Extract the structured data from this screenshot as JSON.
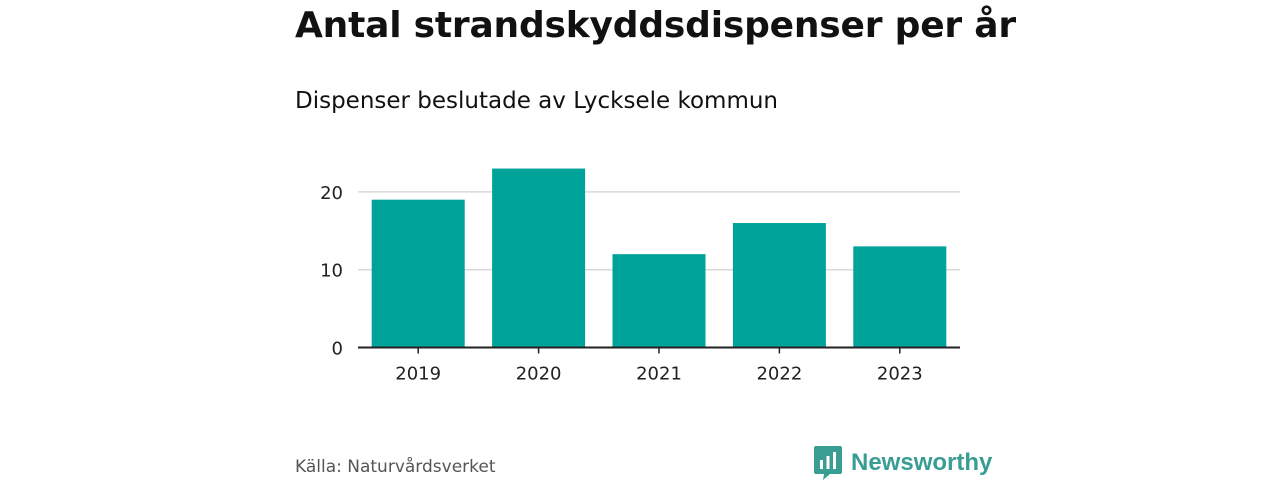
{
  "chart_data": {
    "type": "bar",
    "title": "Antal strandskyddsdispenser per år",
    "subtitle": "Dispenser beslutade av Lycksele kommun",
    "categories": [
      "2019",
      "2020",
      "2021",
      "2022",
      "2023"
    ],
    "values": [
      19,
      23,
      12,
      16,
      13
    ],
    "xlabel": "",
    "ylabel": "",
    "ylim": [
      0,
      25
    ],
    "yticks": [
      0,
      10,
      20
    ],
    "grid": true,
    "legend": "none"
  },
  "colors": {
    "bar": "#00a39a",
    "grid": "#d9d9d9",
    "axis": "#222222",
    "brand": "#3a9d94"
  },
  "footer": {
    "source": "Källa: Naturvårdsverket",
    "brand_name": "Newsworthy",
    "brand_icon": "newsworthy-logo-icon"
  }
}
